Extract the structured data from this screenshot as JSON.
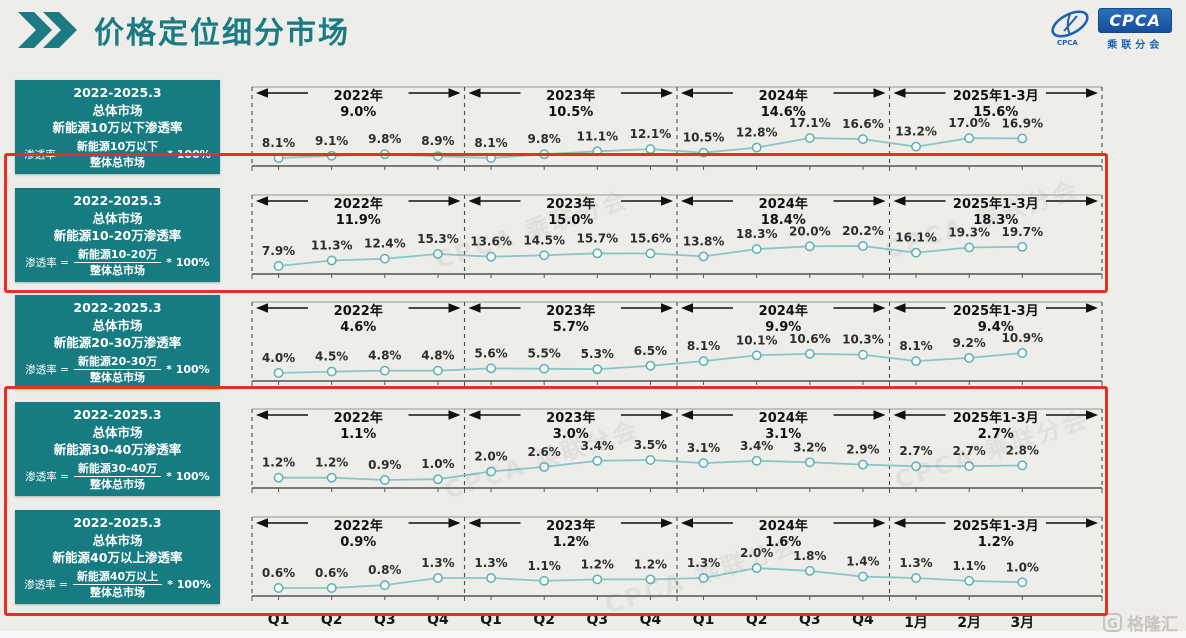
{
  "header": {
    "title": "价格定位细分市场",
    "logo_name": "CPCA",
    "logo_sub": "乘联分会"
  },
  "footer": {
    "watermark": "格隆汇"
  },
  "faint_watermark": "CPCA 乘联分会",
  "colors": {
    "accent_teal": "#167c82",
    "line": "#86c8c6",
    "marker_stroke": "#5ab3b1",
    "highlight_red": "#e53022",
    "logo_blue": "#1e63ae"
  },
  "chart_data": {
    "type": "line",
    "unit": "%",
    "categories": [
      "Q1",
      "Q2",
      "Q3",
      "Q4",
      "Q1",
      "Q2",
      "Q3",
      "Q4",
      "Q1",
      "Q2",
      "Q3",
      "Q4",
      "1月",
      "2月",
      "3月"
    ],
    "formula_lhs": "渗透率 =",
    "formula_denominator": "整体总市场",
    "formula_suffix": "* 100%",
    "series": [
      {
        "name": "新能源10万以下渗透率",
        "title_lines": [
          "2022-2025.3",
          "总体市场",
          "新能源10万以下渗透率"
        ],
        "formula_numerator": "新能源10万以下",
        "highlighted": false,
        "periods": [
          {
            "label": "2022年",
            "avg": "9.0%",
            "values": [
              8.1,
              9.1,
              9.8,
              8.9
            ]
          },
          {
            "label": "2023年",
            "avg": "10.5%",
            "values": [
              8.1,
              9.8,
              11.1,
              12.1
            ]
          },
          {
            "label": "2024年",
            "avg": "14.6%",
            "values": [
              10.5,
              12.8,
              17.1,
              16.6
            ]
          },
          {
            "label": "2025年1-3月",
            "avg": "15.6%",
            "values": [
              13.2,
              17.0,
              16.9
            ]
          }
        ]
      },
      {
        "name": "新能源10-20万渗透率",
        "title_lines": [
          "2022-2025.3",
          "总体市场",
          "新能源10-20万渗透率"
        ],
        "formula_numerator": "新能源10-20万",
        "highlighted": true,
        "periods": [
          {
            "label": "2022年",
            "avg": "11.9%",
            "values": [
              7.9,
              11.3,
              12.4,
              15.3
            ]
          },
          {
            "label": "2023年",
            "avg": "15.0%",
            "values": [
              13.6,
              14.5,
              15.7,
              15.6
            ]
          },
          {
            "label": "2024年",
            "avg": "18.4%",
            "values": [
              13.8,
              18.3,
              20.0,
              20.2
            ]
          },
          {
            "label": "2025年1-3月",
            "avg": "18.3%",
            "values": [
              16.1,
              19.3,
              19.7
            ]
          }
        ]
      },
      {
        "name": "新能源20-30万渗透率",
        "title_lines": [
          "2022-2025.3",
          "总体市场",
          "新能源20-30万渗透率"
        ],
        "formula_numerator": "新能源20-30万",
        "highlighted": false,
        "periods": [
          {
            "label": "2022年",
            "avg": "4.6%",
            "values": [
              4.0,
              4.5,
              4.8,
              4.8
            ]
          },
          {
            "label": "2023年",
            "avg": "5.7%",
            "values": [
              5.6,
              5.5,
              5.3,
              6.5
            ]
          },
          {
            "label": "2024年",
            "avg": "9.9%",
            "values": [
              8.1,
              10.1,
              10.6,
              10.3
            ]
          },
          {
            "label": "2025年1-3月",
            "avg": "9.4%",
            "values": [
              8.1,
              9.2,
              10.9
            ]
          }
        ]
      },
      {
        "name": "新能源30-40万渗透率",
        "title_lines": [
          "2022-2025.3",
          "总体市场",
          "新能源30-40万渗透率"
        ],
        "formula_numerator": "新能源30-40万",
        "highlighted": true,
        "periods": [
          {
            "label": "2022年",
            "avg": "1.1%",
            "values": [
              1.2,
              1.2,
              0.9,
              1.0
            ]
          },
          {
            "label": "2023年",
            "avg": "3.0%",
            "values": [
              2.0,
              2.6,
              3.4,
              3.5
            ]
          },
          {
            "label": "2024年",
            "avg": "3.1%",
            "values": [
              3.1,
              3.4,
              3.2,
              2.9
            ]
          },
          {
            "label": "2025年1-3月",
            "avg": "2.7%",
            "values": [
              2.7,
              2.7,
              2.8
            ]
          }
        ]
      },
      {
        "name": "新能源40万以上渗透率",
        "title_lines": [
          "2022-2025.3",
          "总体市场",
          "新能源40万以上渗透率"
        ],
        "formula_numerator": "新能源40万以上",
        "highlighted": true,
        "periods": [
          {
            "label": "2022年",
            "avg": "0.9%",
            "values": [
              0.6,
              0.6,
              0.8,
              1.3
            ]
          },
          {
            "label": "2023年",
            "avg": "1.2%",
            "values": [
              1.3,
              1.1,
              1.2,
              1.2
            ]
          },
          {
            "label": "2024年",
            "avg": "1.6%",
            "values": [
              1.3,
              2.0,
              1.8,
              1.4
            ]
          },
          {
            "label": "2025年1-3月",
            "avg": "1.2%",
            "values": [
              1.3,
              1.1,
              1.0
            ]
          }
        ]
      }
    ]
  }
}
